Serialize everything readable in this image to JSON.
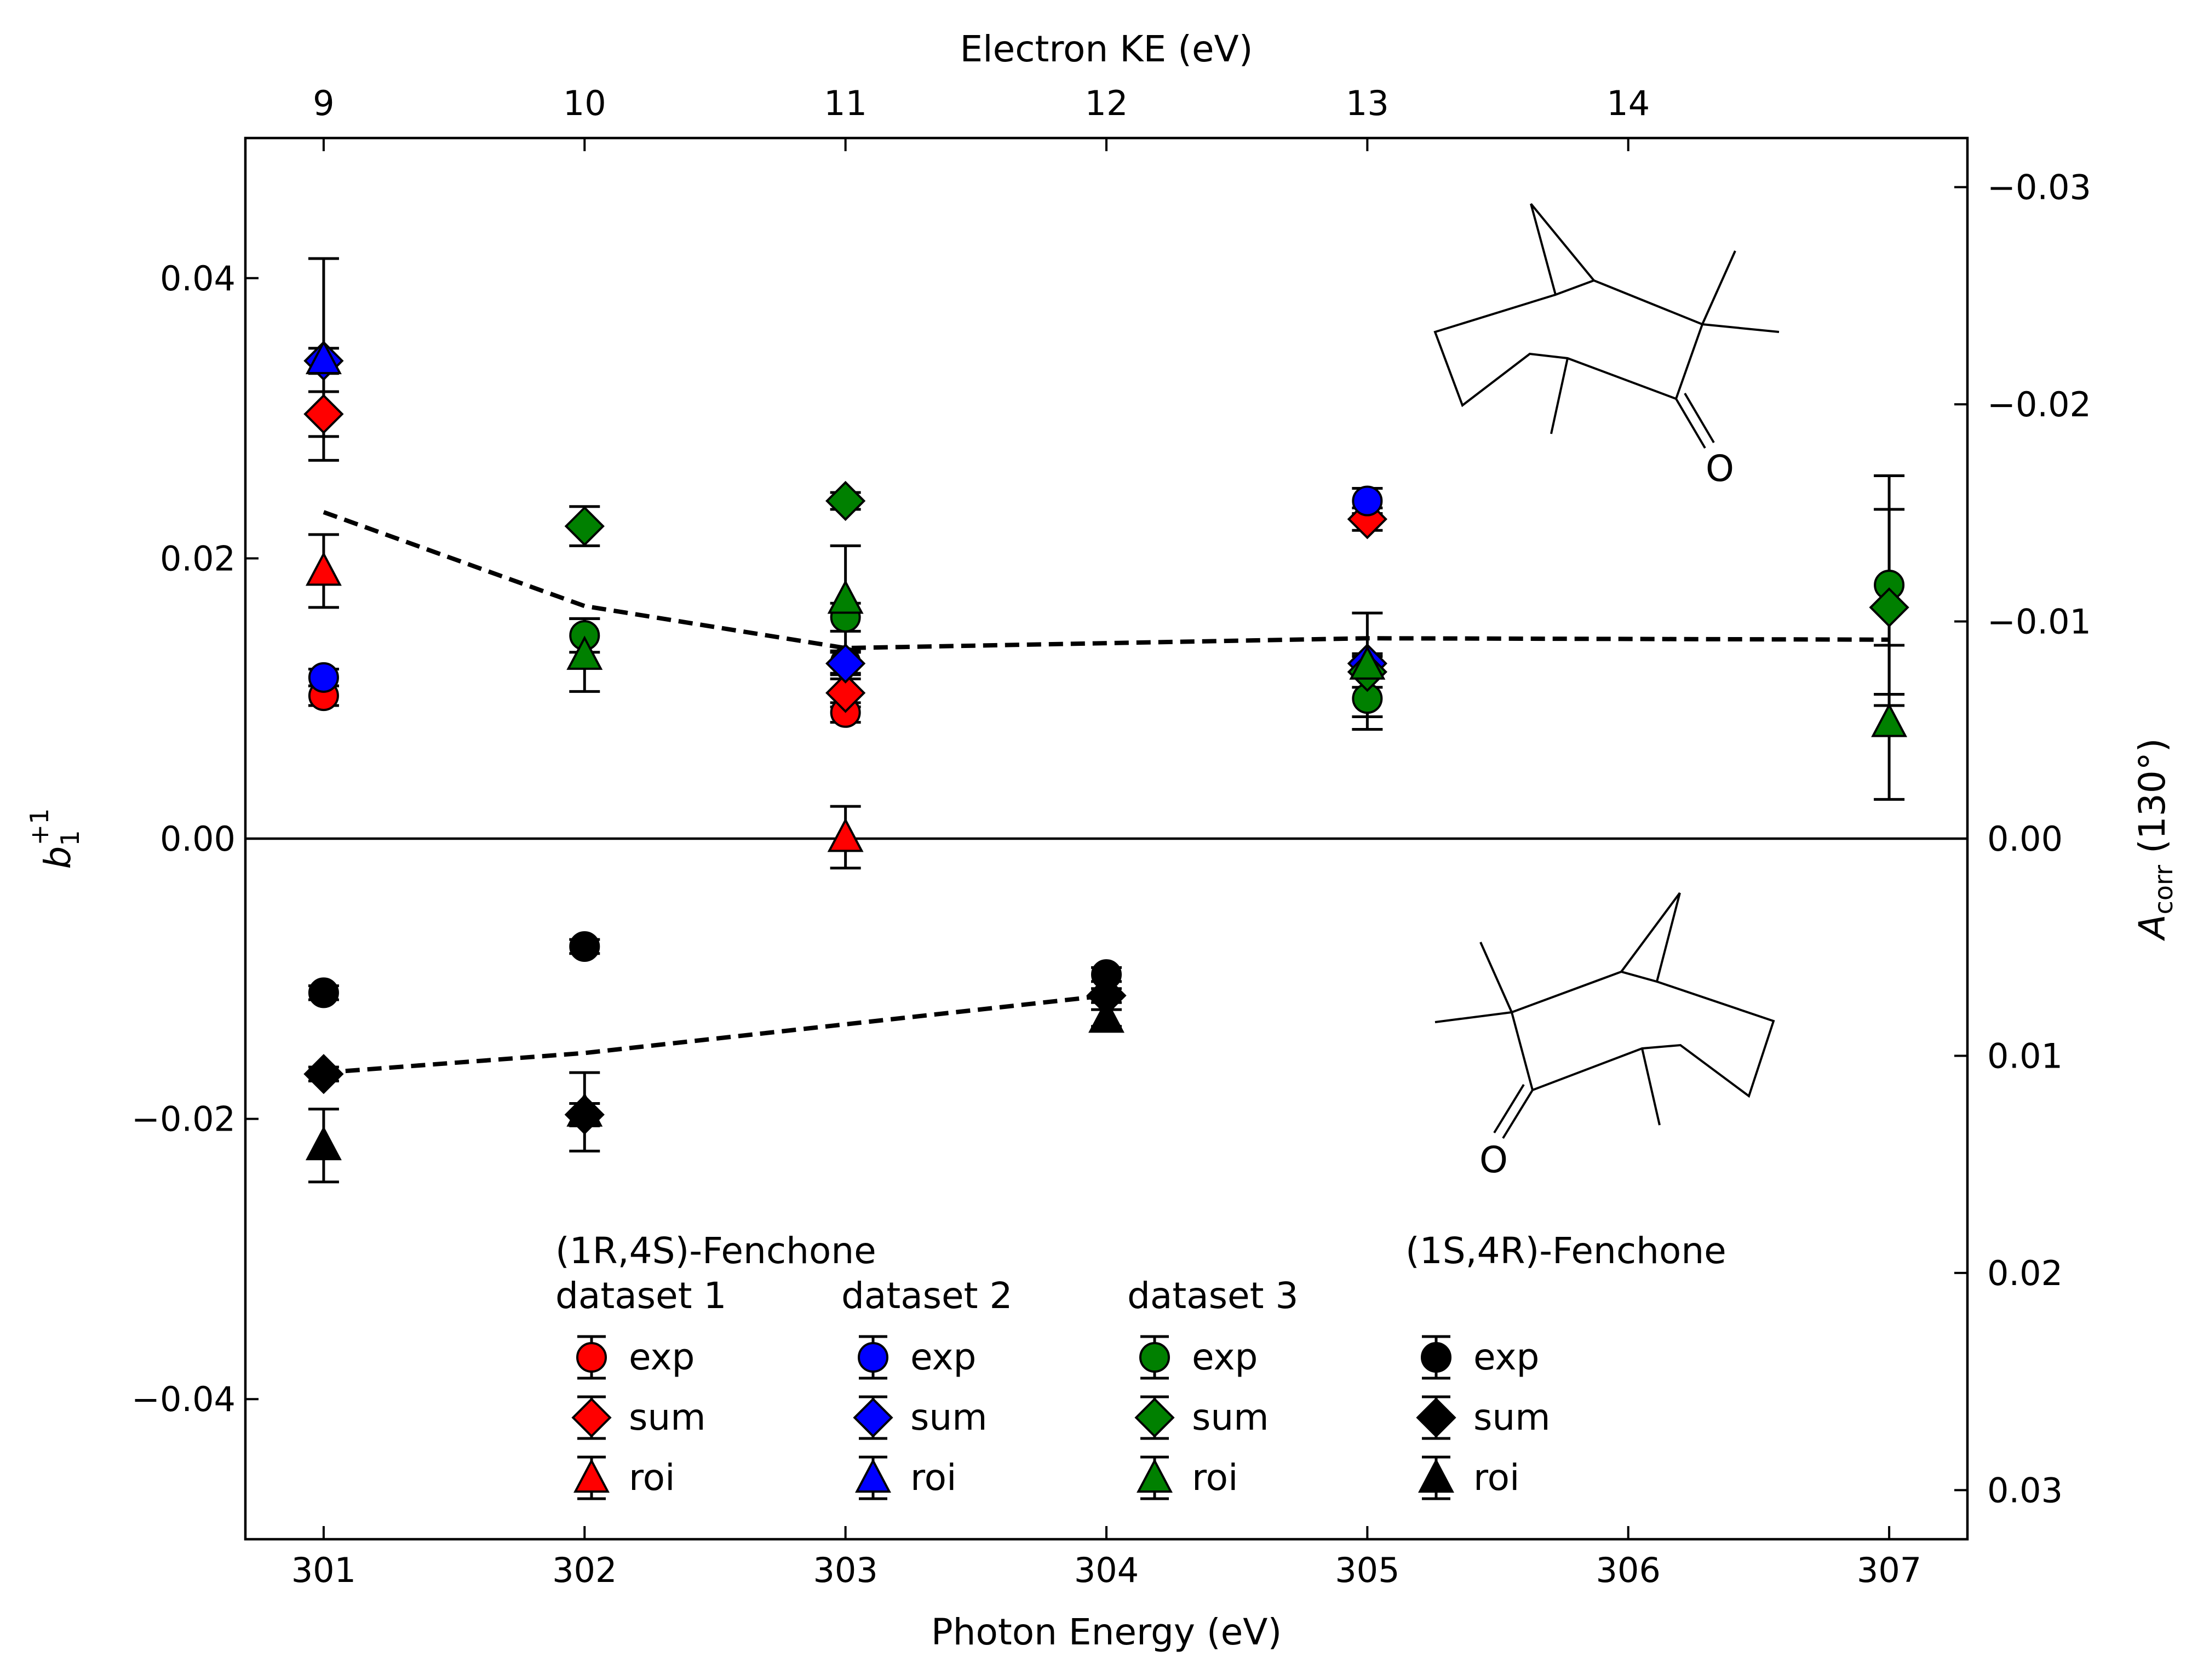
{
  "chart_data": {
    "type": "scatter",
    "xlabel": "Photon Energy (eV)",
    "top_xlabel": "Electron KE (eV)",
    "ylabel_main": "b",
    "ylabel_sub": "1",
    "ylabel_sup": "+1",
    "y2label_main": "A",
    "y2label_sub": "corr",
    "y2label_tail": " (130°)",
    "xlim": [
      300.7,
      307.3
    ],
    "ylim": [
      -0.05,
      0.05
    ],
    "xticks": [
      301,
      302,
      303,
      304,
      305,
      306,
      307
    ],
    "xtick_labels": [
      "301",
      "302",
      "303",
      "304",
      "305",
      "306",
      "307"
    ],
    "yticks": [
      -0.04,
      -0.02,
      0.0,
      0.02,
      0.04
    ],
    "ytick_labels": [
      "−0.04",
      "−0.02",
      "0.00",
      "0.02",
      "0.04"
    ],
    "top_ticks_ke": [
      9,
      10,
      11,
      12,
      13,
      14
    ],
    "top_tick_labels": [
      "9",
      "10",
      "11",
      "12",
      "13",
      "14"
    ],
    "top_ke_offset": 292.0,
    "right_ticks_acorr": [
      -0.03,
      -0.02,
      -0.01,
      0.0,
      0.01,
      0.02,
      0.03
    ],
    "right_tick_labels": [
      "−0.03",
      "−0.02",
      "−0.01",
      "0.00",
      "0.01",
      "0.02",
      "0.03"
    ],
    "right_scale": -0.6452,
    "zero_line": true,
    "colors": {
      "dataset1": "#ff0000",
      "dataset2": "#0000ff",
      "dataset3": "#008000",
      "enantiomer": "#000000"
    },
    "series": [
      {
        "name": "dataset 1 exp",
        "color": "#ff0000",
        "marker": "circle",
        "points": [
          [
            301,
            0.0102,
            0.0007
          ],
          [
            303,
            0.009,
            0.0007
          ]
        ]
      },
      {
        "name": "dataset 1 sum",
        "color": "#ff0000",
        "marker": "diamond",
        "points": [
          [
            301,
            0.0303,
            0.0016
          ],
          [
            303,
            0.0104,
            0.001
          ],
          [
            305,
            0.0228,
            0.0008
          ]
        ]
      },
      {
        "name": "dataset 1 roi",
        "color": "#ff0000",
        "marker": "triangle",
        "points": [
          [
            301,
            0.0191,
            0.0026
          ],
          [
            303,
            0.0001,
            0.0022
          ]
        ]
      },
      {
        "name": "dataset 2 exp",
        "color": "#0000ff",
        "marker": "circle",
        "points": [
          [
            301,
            0.0115,
            0.0006
          ],
          [
            303,
            0.0126,
            0.0008
          ],
          [
            305,
            0.0241,
            0.0009
          ]
        ]
      },
      {
        "name": "dataset 2 sum",
        "color": "#0000ff",
        "marker": "diamond",
        "points": [
          [
            301,
            0.0341,
            0.0009
          ],
          [
            303,
            0.0125,
            0.0008
          ],
          [
            305,
            0.0125,
            0.0007
          ]
        ]
      },
      {
        "name": "dataset 2 roi",
        "color": "#0000ff",
        "marker": "triangle",
        "points": [
          [
            301,
            0.0342,
            0.0072
          ]
        ]
      },
      {
        "name": "dataset 3 exp",
        "color": "#008000",
        "marker": "circle",
        "points": [
          [
            302,
            0.0145,
            0.0012
          ],
          [
            303,
            0.0158,
            0.001
          ],
          [
            305,
            0.01,
            0.0022
          ],
          [
            307,
            0.0181,
            0.0078
          ]
        ]
      },
      {
        "name": "dataset 3 sum",
        "color": "#008000",
        "marker": "diamond",
        "points": [
          [
            302,
            0.0223,
            0.0014
          ],
          [
            303,
            0.0241,
            0.0006
          ],
          [
            305,
            0.0119,
            0.0011
          ],
          [
            307,
            0.0165,
            0.007
          ]
        ]
      },
      {
        "name": "dataset 3 roi",
        "color": "#008000",
        "marker": "triangle",
        "points": [
          [
            302,
            0.0131,
            0.0026
          ],
          [
            303,
            0.0171,
            0.0038
          ],
          [
            305,
            0.0124,
            0.0037
          ],
          [
            307,
            0.0083,
            0.0055
          ]
        ]
      },
      {
        "name": "(1S,4R) exp",
        "color": "#000000",
        "marker": "circle",
        "points": [
          [
            301,
            -0.011,
            0.0005
          ],
          [
            302,
            -0.0077,
            0.0005
          ],
          [
            304,
            -0.0097,
            0.0005
          ]
        ]
      },
      {
        "name": "(1S,4R) sum",
        "color": "#000000",
        "marker": "diamond",
        "points": [
          [
            301,
            -0.0168,
            0.0005
          ],
          [
            302,
            -0.0197,
            0.0008
          ],
          [
            304,
            -0.0112,
            0.0005
          ]
        ]
      },
      {
        "name": "(1S,4R) roi",
        "color": "#000000",
        "marker": "triangle",
        "points": [
          [
            301,
            -0.0219,
            0.0026
          ],
          [
            302,
            -0.0195,
            0.0028
          ],
          [
            304,
            -0.0128,
            0.0006
          ]
        ]
      }
    ],
    "dashed_lines": [
      {
        "name": "(1R,4S) trend",
        "points": [
          [
            301,
            0.0233
          ],
          [
            302,
            0.0166
          ],
          [
            303,
            0.0136
          ],
          [
            305,
            0.0143
          ],
          [
            307,
            0.0142
          ]
        ]
      },
      {
        "name": "(1S,4R) trend",
        "points": [
          [
            301,
            -0.0167
          ],
          [
            302,
            -0.0153
          ],
          [
            304,
            -0.0112
          ]
        ]
      }
    ],
    "legend": {
      "group_title": "(1R,4S)-Fenchone",
      "columns": [
        {
          "title": "dataset 1",
          "color": "#ff0000",
          "entries": [
            "exp",
            "sum",
            "roi"
          ]
        },
        {
          "title": "dataset 2",
          "color": "#0000ff",
          "entries": [
            "exp",
            "sum",
            "roi"
          ]
        },
        {
          "title": "dataset 3",
          "color": "#008000",
          "entries": [
            "exp",
            "sum",
            "roi"
          ]
        },
        {
          "title": "(1S,4R)-Fenchone",
          "color": "#000000",
          "entries": [
            "exp",
            "sum",
            "roi"
          ]
        }
      ]
    },
    "molecule_label": "O"
  }
}
